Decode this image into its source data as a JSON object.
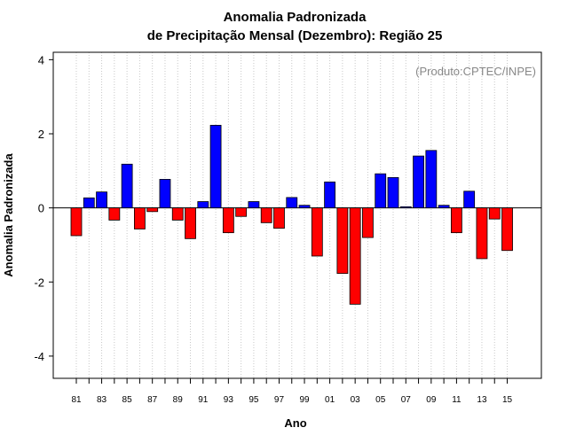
{
  "chart_data": {
    "type": "bar",
    "title": "Anomalia Padronizada",
    "subtitle": "de Precipitação Mensal (Dezembro): Região 25",
    "xlabel": "Ano",
    "ylabel": "Anomalia Padronizada",
    "credit": "(Produto:CPTEC/INPE)",
    "ylim": [
      -4.6,
      4.2
    ],
    "yticks": [
      -4,
      -2,
      0,
      2,
      4
    ],
    "grid": "vertical dotted",
    "x_tick_labels": [
      "81",
      "83",
      "85",
      "87",
      "89",
      "91",
      "93",
      "95",
      "97",
      "99",
      "01",
      "03",
      "05",
      "07",
      "09",
      "11",
      "13",
      "15"
    ],
    "categories": [
      "1981",
      "1982",
      "1983",
      "1984",
      "1985",
      "1986",
      "1987",
      "1988",
      "1989",
      "1990",
      "1991",
      "1992",
      "1993",
      "1994",
      "1995",
      "1996",
      "1997",
      "1998",
      "1999",
      "2000",
      "2001",
      "2002",
      "2003",
      "2004",
      "2005",
      "2006",
      "2007",
      "2008",
      "2009",
      "2010",
      "2011",
      "2012",
      "2013",
      "2014",
      "2015"
    ],
    "values": [
      -0.75,
      0.27,
      0.43,
      -0.33,
      1.18,
      -0.57,
      -0.1,
      0.77,
      -0.33,
      -0.83,
      0.17,
      2.23,
      -0.67,
      -0.23,
      0.17,
      -0.4,
      -0.55,
      0.28,
      0.07,
      -1.3,
      0.7,
      -1.77,
      -2.6,
      -0.8,
      0.92,
      0.82,
      0.03,
      1.4,
      1.55,
      0.07,
      -0.67,
      0.45,
      -1.37,
      -0.3,
      -1.15
    ],
    "colors": {
      "positive": "#0000ff",
      "negative": "#ff0000",
      "grid": "#c8c8c8"
    }
  }
}
